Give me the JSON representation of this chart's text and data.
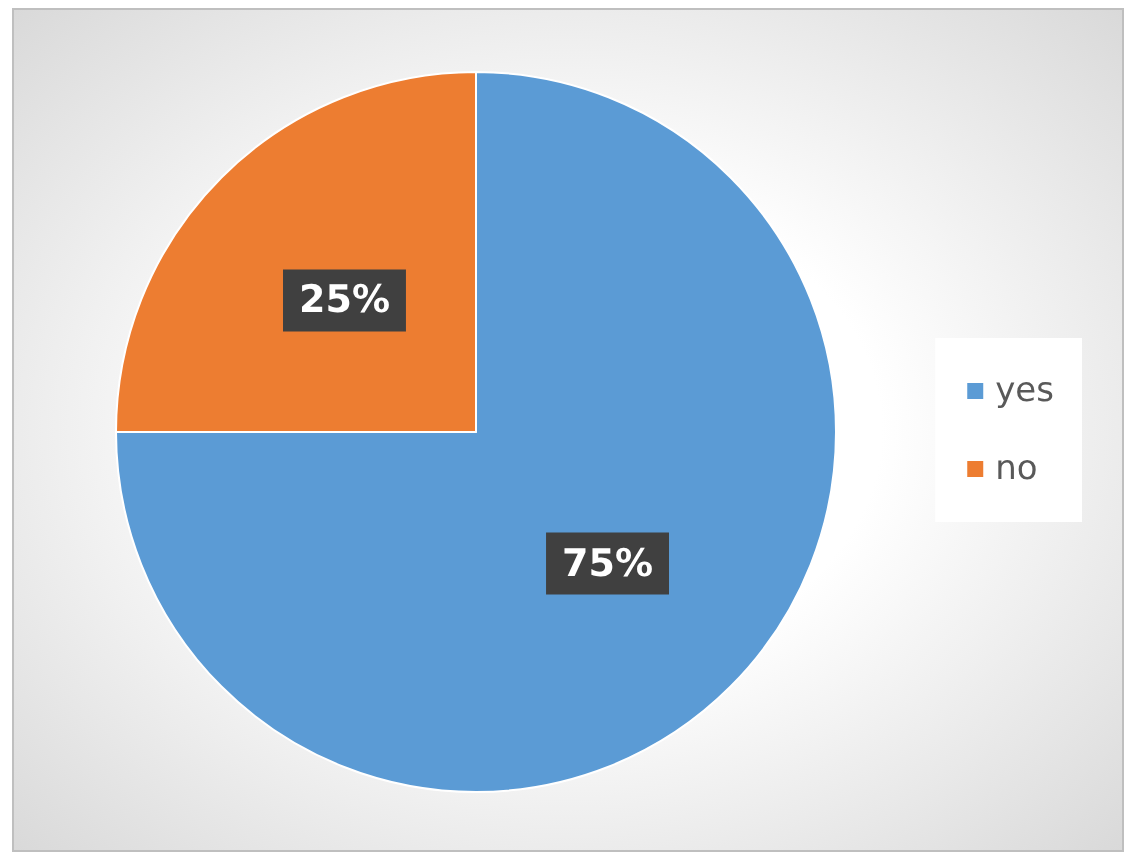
{
  "chart_data": {
    "type": "pie",
    "categories": [
      "yes",
      "no"
    ],
    "values": [
      75,
      25
    ],
    "colors": [
      "#5b9bd5",
      "#ed7d31"
    ],
    "value_labels": [
      "75%",
      "25%"
    ],
    "legend": "right"
  }
}
